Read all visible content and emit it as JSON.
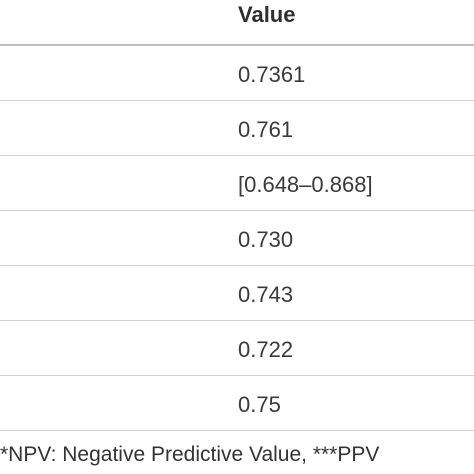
{
  "table": {
    "header": {
      "value_label": "Value"
    },
    "rows": [
      {
        "value": "0.7361"
      },
      {
        "value": "0.761"
      },
      {
        "value": "[0.648–0.868]"
      },
      {
        "value": "0.730"
      },
      {
        "value": "0.743"
      },
      {
        "value": "0.722"
      },
      {
        "value": "0.75"
      }
    ]
  },
  "footnote": {
    "text": "*NPV: Negative Predictive Value, ***PPV"
  }
}
